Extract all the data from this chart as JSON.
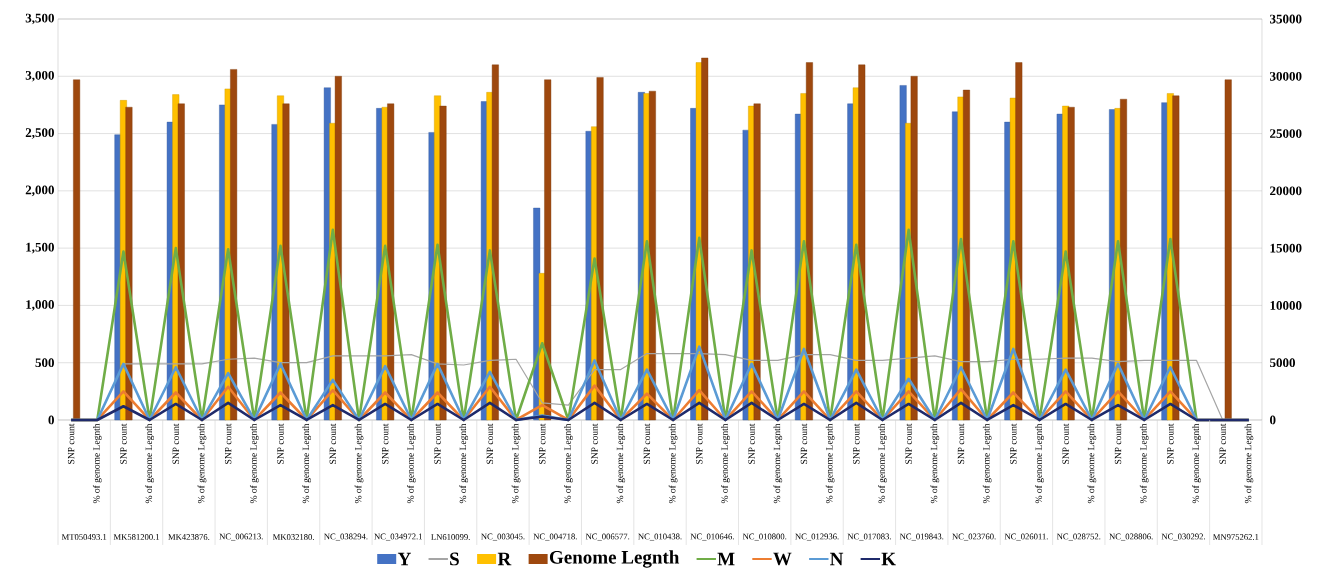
{
  "chart_data": {
    "type": "bar",
    "categories": [
      "SNP count",
      "% of genome Legnth",
      "SNP count",
      "% of genome Legnth",
      "SNP count",
      "% of genome Legnth",
      "SNP count",
      "% of genome Legnth",
      "SNP count",
      "% of genome Legnth",
      "SNP count",
      "% of genome Legnth",
      "SNP count",
      "% of genome Legnth",
      "SNP count",
      "% of genome Legnth",
      "SNP count",
      "% of genome Legnth",
      "SNP count",
      "% of genome Legnth",
      "SNP count",
      "% of genome Legnth",
      "SNP count",
      "% of genome Legnth",
      "SNP count",
      "% of genome Legnth",
      "SNP count",
      "% of genome Legnth",
      "SNP count",
      "% of genome Legnth",
      "SNP count",
      "% of genome Legnth",
      "SNP count",
      "% of genome Legnth",
      "SNP count",
      "% of genome Legnth",
      "SNP count",
      "% of genome Legnth",
      "SNP count",
      "% of genome Legnth",
      "SNP count",
      "% of genome Legnth",
      "SNP count",
      "% of genome Legnth",
      "SNP count",
      "% of genome Legnth"
    ],
    "annotations": [
      "MT050493.1",
      "MK581200.1",
      "MK423876.",
      "NC_006213.",
      "MK032180.",
      "NC_038294.",
      "NC_034972.1",
      "LN610099.",
      "NC_003045.",
      "NC_004718.",
      "NC_006577.",
      "NC_010438.",
      "NC_010646.",
      "NC_010800.",
      "NC_012936.",
      "NC_017083.",
      "NC_019843.",
      "NC_023760.",
      "NC_026011.",
      "NC_028752.",
      "NC_028806.",
      "NC_030292.",
      "MN975262.1"
    ],
    "series": [
      {
        "name": "Y",
        "type": "bar",
        "axis": "y2",
        "color": "#4472c4",
        "values": [
          null,
          null,
          24900,
          null,
          26000,
          null,
          27500,
          null,
          25800,
          null,
          29000,
          null,
          27200,
          null,
          25100,
          null,
          27800,
          null,
          18500,
          null,
          25200,
          null,
          28600,
          null,
          27200,
          null,
          25300,
          null,
          26700,
          null,
          27600,
          null,
          29200,
          null,
          26900,
          null,
          26000,
          null,
          26700,
          null,
          27100,
          null,
          27700,
          null,
          null,
          null
        ]
      },
      {
        "name": "S",
        "type": "line",
        "color": "#a5a5a5",
        "values": [
          null,
          null,
          490,
          490,
          490,
          490,
          530,
          540,
          500,
          500,
          560,
          560,
          560,
          570,
          490,
          480,
          520,
          530,
          150,
          130,
          440,
          440,
          580,
          580,
          580,
          570,
          520,
          520,
          570,
          570,
          520,
          520,
          540,
          560,
          510,
          510,
          530,
          530,
          540,
          540,
          510,
          520,
          520,
          520,
          0,
          0
        ]
      },
      {
        "name": "R",
        "type": "bar",
        "axis": "y2",
        "color": "#ffc000",
        "values": [
          null,
          null,
          27900,
          null,
          28400,
          null,
          28900,
          null,
          28300,
          null,
          25900,
          null,
          27300,
          null,
          28300,
          null,
          28600,
          null,
          12800,
          null,
          25600,
          null,
          28500,
          null,
          31200,
          null,
          27400,
          null,
          28500,
          null,
          29000,
          null,
          25900,
          null,
          28200,
          null,
          28100,
          null,
          27400,
          null,
          27200,
          null,
          28500,
          null,
          null,
          null
        ]
      },
      {
        "name": "Genome Legnth",
        "type": "bar",
        "axis": "y2",
        "color": "#9e480e",
        "values": [
          29700,
          null,
          27300,
          null,
          27600,
          null,
          30600,
          null,
          27600,
          null,
          30000,
          null,
          27600,
          null,
          27400,
          null,
          31000,
          null,
          29700,
          null,
          29900,
          null,
          28700,
          null,
          31600,
          null,
          27600,
          null,
          31200,
          null,
          31000,
          null,
          30000,
          null,
          28800,
          null,
          31200,
          null,
          27300,
          null,
          28000,
          null,
          28300,
          null,
          29700,
          null
        ]
      },
      {
        "name": "M",
        "type": "line",
        "color": "#70ad47",
        "values": [
          0,
          0,
          1470,
          0,
          1500,
          0,
          1490,
          0,
          1520,
          0,
          1660,
          0,
          1520,
          0,
          1530,
          0,
          1480,
          0,
          670,
          0,
          1410,
          0,
          1560,
          0,
          1590,
          0,
          1480,
          0,
          1560,
          0,
          1530,
          0,
          1660,
          0,
          1580,
          0,
          1560,
          0,
          1470,
          0,
          1560,
          0,
          1580,
          0,
          0,
          0
        ]
      },
      {
        "name": "W",
        "type": "line",
        "color": "#ed7d31",
        "values": [
          0,
          0,
          250,
          0,
          240,
          0,
          290,
          0,
          240,
          0,
          260,
          0,
          240,
          0,
          240,
          0,
          290,
          0,
          130,
          0,
          300,
          0,
          230,
          0,
          260,
          0,
          250,
          0,
          250,
          0,
          250,
          0,
          250,
          0,
          270,
          0,
          240,
          0,
          250,
          0,
          250,
          0,
          250,
          0,
          0,
          0
        ]
      },
      {
        "name": "N",
        "type": "line",
        "color": "#5b9bd5",
        "values": [
          0,
          0,
          490,
          0,
          460,
          0,
          410,
          0,
          490,
          0,
          350,
          0,
          470,
          0,
          490,
          0,
          420,
          0,
          40,
          0,
          520,
          0,
          440,
          0,
          640,
          0,
          490,
          0,
          620,
          0,
          440,
          0,
          360,
          0,
          460,
          0,
          620,
          0,
          440,
          0,
          490,
          0,
          460,
          0,
          0,
          0
        ]
      },
      {
        "name": "K",
        "type": "line",
        "color": "#1f2a6b",
        "values": [
          0,
          0,
          120,
          0,
          140,
          0,
          150,
          0,
          130,
          0,
          130,
          0,
          140,
          0,
          140,
          0,
          150,
          0,
          30,
          0,
          150,
          0,
          140,
          0,
          150,
          0,
          150,
          0,
          140,
          0,
          150,
          0,
          140,
          0,
          150,
          0,
          130,
          0,
          140,
          0,
          130,
          0,
          140,
          0,
          0,
          0
        ]
      }
    ],
    "ylim": [
      0,
      3500
    ],
    "yticks": [
      {
        "value": 0,
        "label": "0"
      },
      {
        "value": 500,
        "label": "500"
      },
      {
        "value": 1000,
        "label": "1,000"
      },
      {
        "value": 1500,
        "label": "1,500"
      },
      {
        "value": 2000,
        "label": "2,000"
      },
      {
        "value": 2500,
        "label": "2,500"
      },
      {
        "value": 3000,
        "label": "3,000"
      },
      {
        "value": 3500,
        "label": "3,500"
      }
    ],
    "y2lim": [
      0,
      35000
    ],
    "y2ticks": [
      0,
      5000,
      10000,
      15000,
      20000,
      25000,
      30000,
      35000
    ],
    "grid": "y",
    "legend": "bottom",
    "line_style": "solid",
    "marker": "none"
  }
}
